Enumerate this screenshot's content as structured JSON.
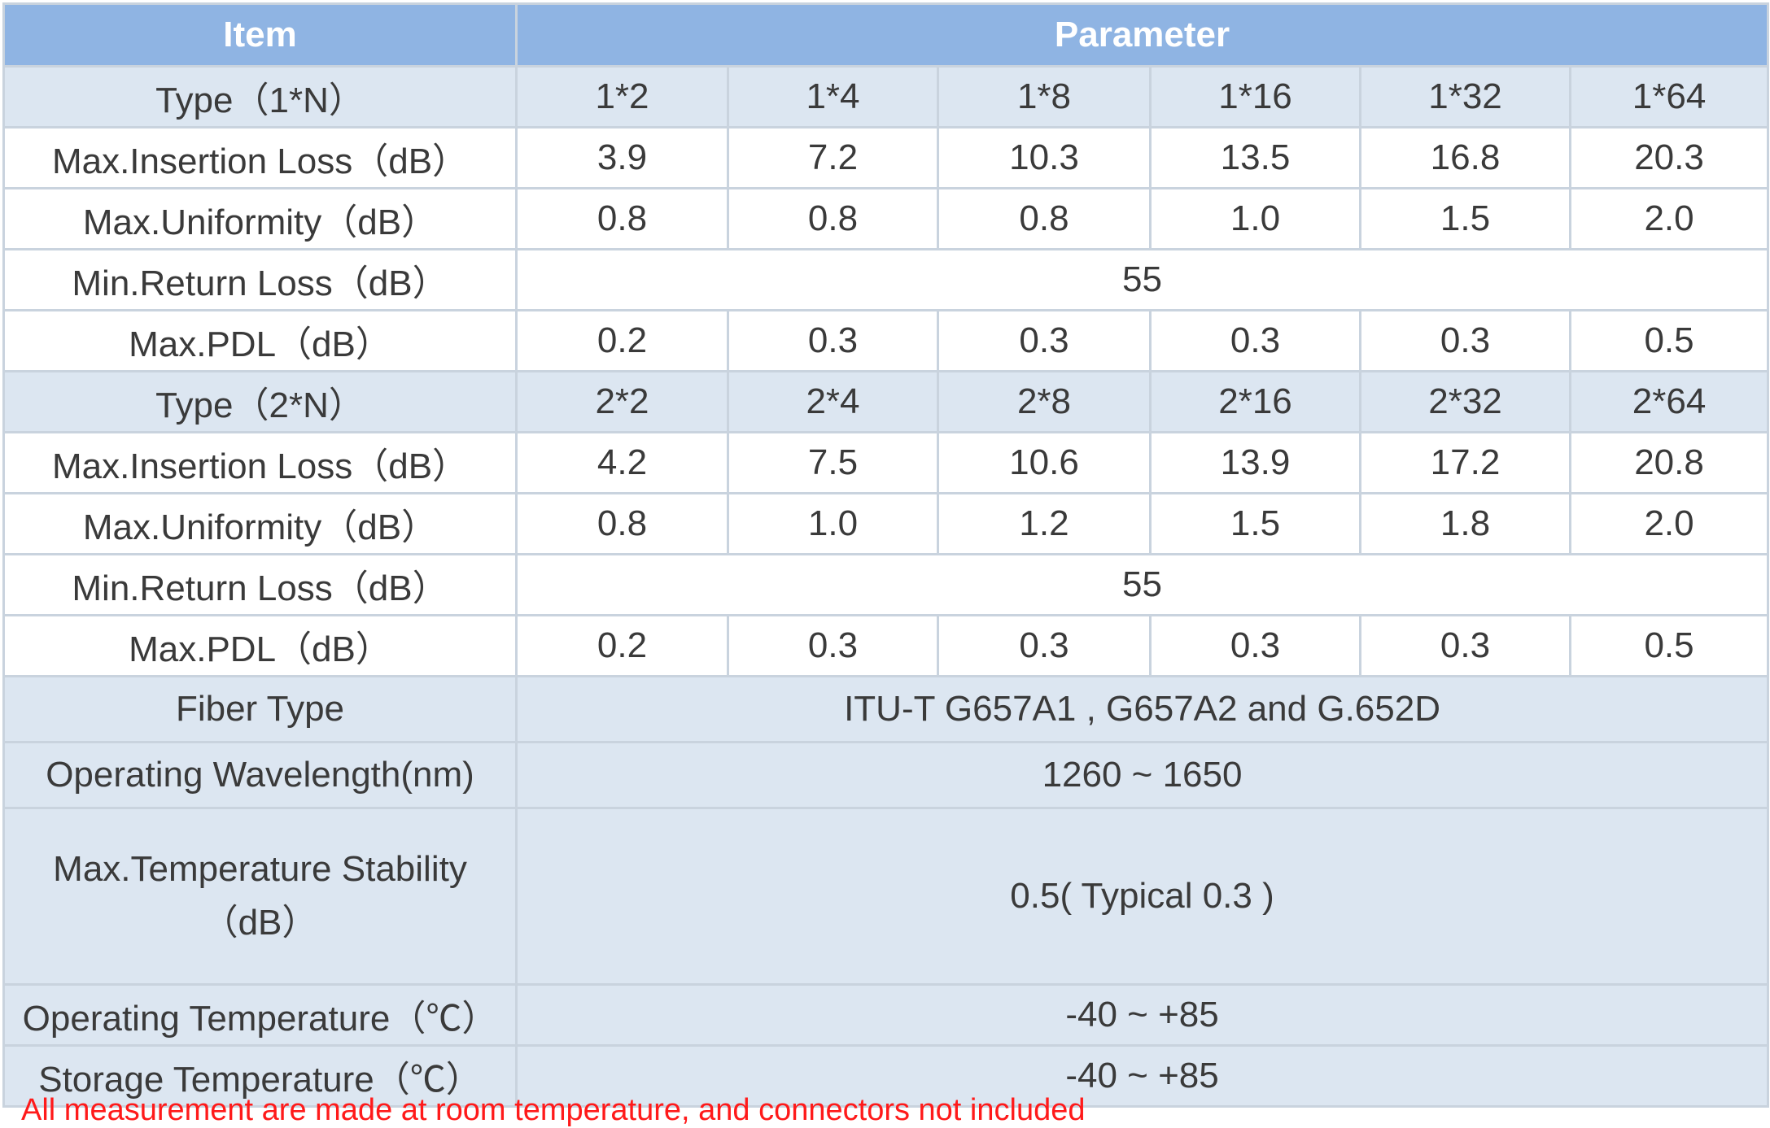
{
  "header": {
    "item": "Item",
    "parameter": "Parameter"
  },
  "groups": [
    {
      "type_label": "Type（1*N）",
      "types": [
        "1*2",
        "1*4",
        "1*8",
        "1*16",
        "1*32",
        "1*64"
      ],
      "insertion_loss_label": "Max.Insertion Loss（dB）",
      "insertion_loss": [
        "3.9",
        "7.2",
        "10.3",
        "13.5",
        "16.8",
        "20.3"
      ],
      "uniformity_label": "Max.Uniformity（dB）",
      "uniformity": [
        "0.8",
        "0.8",
        "0.8",
        "1.0",
        "1.5",
        "2.0"
      ],
      "return_loss_label": "Min.Return Loss（dB）",
      "return_loss": "55",
      "pdl_label": "Max.PDL（dB）",
      "pdl": [
        "0.2",
        "0.3",
        "0.3",
        "0.3",
        "0.3",
        "0.5"
      ]
    },
    {
      "type_label": "Type（2*N）",
      "types": [
        "2*2",
        "2*4",
        "2*8",
        "2*16",
        "2*32",
        "2*64"
      ],
      "insertion_loss_label": "Max.Insertion Loss（dB）",
      "insertion_loss": [
        "4.2",
        "7.5",
        "10.6",
        "13.9",
        "17.2",
        "20.8"
      ],
      "uniformity_label": "Max.Uniformity（dB）",
      "uniformity": [
        "0.8",
        "1.0",
        "1.2",
        "1.5",
        "1.8",
        "2.0"
      ],
      "return_loss_label": "Min.Return Loss（dB）",
      "return_loss": "55",
      "pdl_label": "Max.PDL（dB）",
      "pdl": [
        "0.2",
        "0.3",
        "0.3",
        "0.3",
        "0.3",
        "0.5"
      ]
    }
  ],
  "common": {
    "fiber_type_label": "Fiber Type",
    "fiber_type": "ITU-T G657A1 , G657A2 and G.652D",
    "wavelength_label": "Operating Wavelength(nm)",
    "wavelength": "1260 ~ 1650",
    "temp_stability_label_line1": "Max.Temperature Stability",
    "temp_stability_label_line2": "（dB）",
    "temp_stability": "0.5( Typical 0.3 )",
    "operating_temp_label": "Operating Temperature（℃）",
    "operating_temp": "-40 ~ +85",
    "storage_temp_label": "Storage Temperature（℃）",
    "storage_temp": "-40 ~ +85"
  },
  "note": "All measurement are made at room temperature, and connectors not included"
}
